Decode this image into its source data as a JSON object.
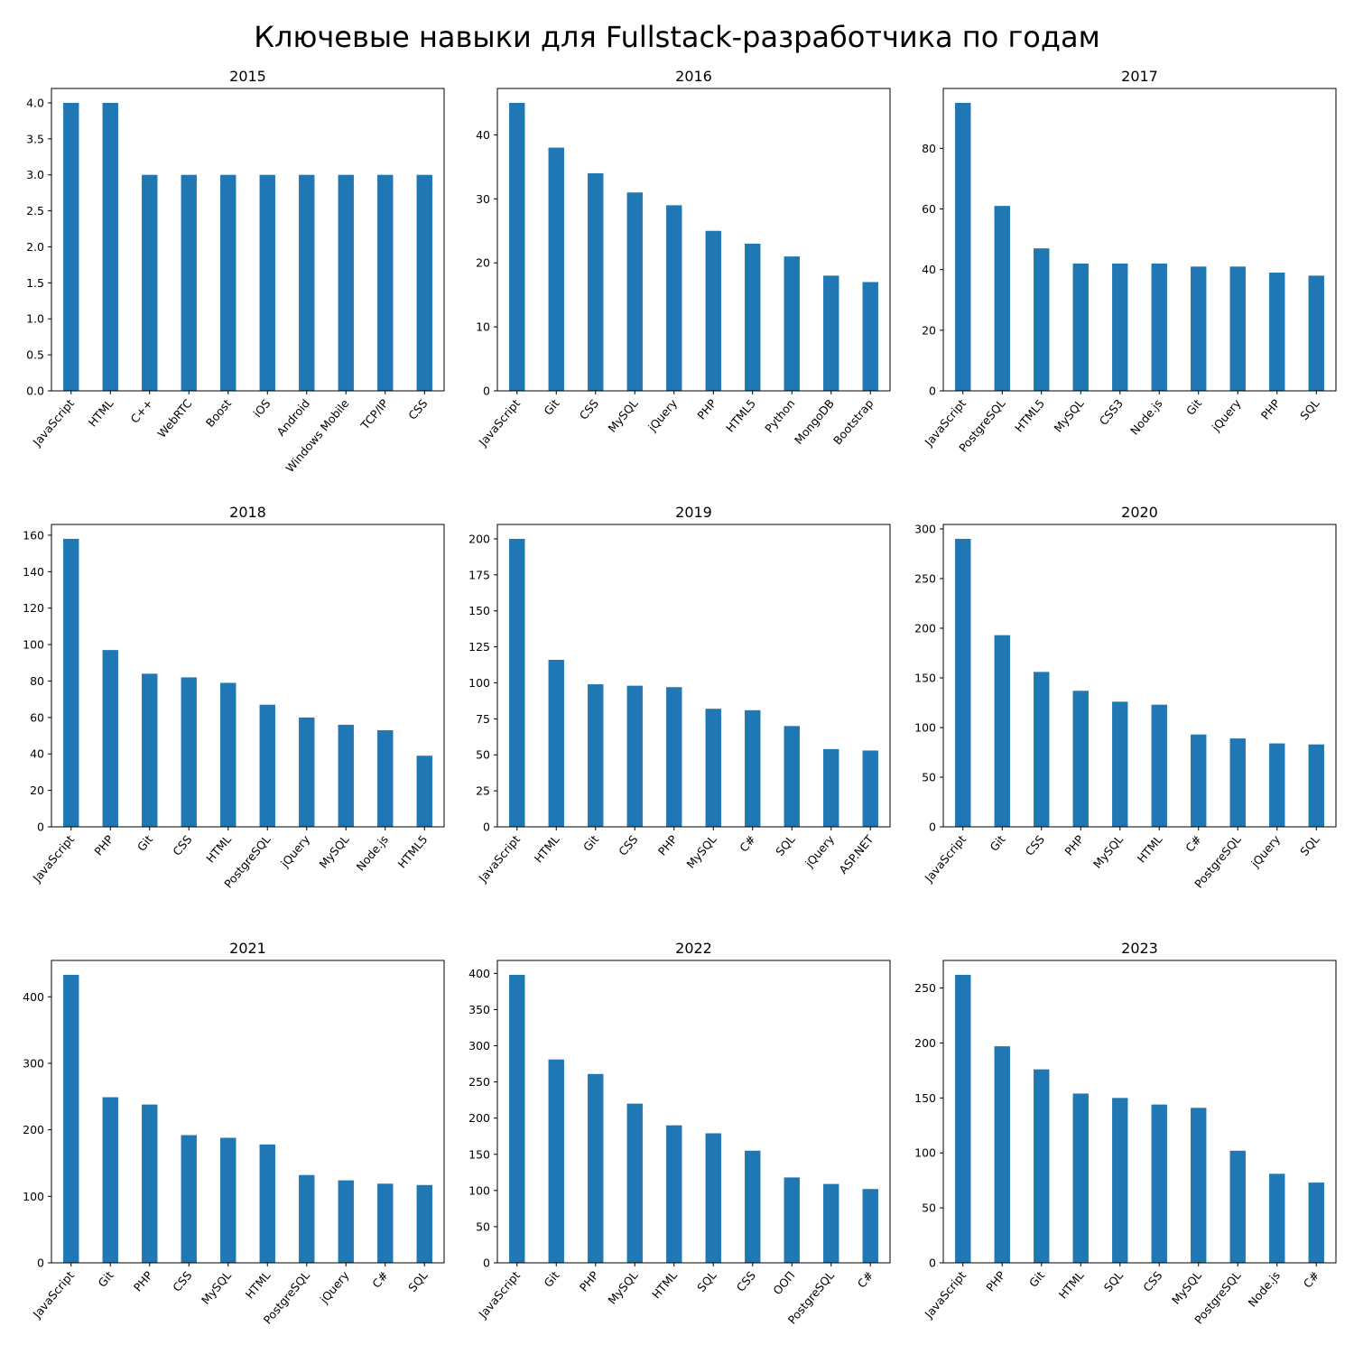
{
  "title": "Ключевые навыки для Fullstack-разработчика по годам",
  "colors": {
    "bar": "#1f77b4",
    "axis": "#000000"
  },
  "chart_data": [
    {
      "type": "bar",
      "title": "2015",
      "categories": [
        "JavaScript",
        "HTML",
        "C++",
        "WebRTC",
        "Boost",
        "iOS",
        "Android",
        "Windows Mobile",
        "TCP/IP",
        "CSS"
      ],
      "values": [
        4,
        4,
        3,
        3,
        3,
        3,
        3,
        3,
        3,
        3
      ],
      "ylim": [
        0,
        4.2
      ],
      "yticks": [
        "0.0",
        "0.5",
        "1.0",
        "1.5",
        "2.0",
        "2.5",
        "3.0",
        "3.5",
        "4.0"
      ]
    },
    {
      "type": "bar",
      "title": "2016",
      "categories": [
        "JavaScript",
        "Git",
        "CSS",
        "MySQL",
        "jQuery",
        "PHP",
        "HTML5",
        "Python",
        "MongoDB",
        "Bootstrap"
      ],
      "values": [
        45,
        38,
        34,
        31,
        29,
        25,
        23,
        21,
        18,
        17
      ],
      "ylim": [
        0,
        47.25
      ],
      "yticks": [
        "0",
        "10",
        "20",
        "30",
        "40"
      ]
    },
    {
      "type": "bar",
      "title": "2017",
      "categories": [
        "JavaScript",
        "PostgreSQL",
        "HTML5",
        "MySQL",
        "CSS3",
        "Node.js",
        "Git",
        "jQuery",
        "PHP",
        "SQL"
      ],
      "values": [
        95,
        61,
        47,
        42,
        42,
        42,
        41,
        41,
        39,
        38
      ],
      "ylim": [
        0,
        99.75
      ],
      "yticks": [
        "0",
        "20",
        "40",
        "60",
        "80"
      ]
    },
    {
      "type": "bar",
      "title": "2018",
      "categories": [
        "JavaScript",
        "PHP",
        "Git",
        "CSS",
        "HTML",
        "PostgreSQL",
        "jQuery",
        "MySQL",
        "Node.js",
        "HTML5"
      ],
      "values": [
        158,
        97,
        84,
        82,
        79,
        67,
        60,
        56,
        53,
        39
      ],
      "ylim": [
        0,
        165.9
      ],
      "yticks": [
        "0",
        "20",
        "40",
        "60",
        "80",
        "100",
        "120",
        "140",
        "160"
      ]
    },
    {
      "type": "bar",
      "title": "2019",
      "categories": [
        "JavaScript",
        "HTML",
        "Git",
        "CSS",
        "PHP",
        "MySQL",
        "C#",
        "SQL",
        "jQuery",
        "ASP.NET"
      ],
      "values": [
        200,
        116,
        99,
        98,
        97,
        82,
        81,
        70,
        54,
        53
      ],
      "ylim": [
        0,
        210
      ],
      "yticks": [
        "0",
        "25",
        "50",
        "75",
        "100",
        "125",
        "150",
        "175",
        "200"
      ]
    },
    {
      "type": "bar",
      "title": "2020",
      "categories": [
        "JavaScript",
        "Git",
        "CSS",
        "PHP",
        "MySQL",
        "HTML",
        "C#",
        "PostgreSQL",
        "jQuery",
        "SQL"
      ],
      "values": [
        290,
        193,
        156,
        137,
        126,
        123,
        93,
        89,
        84,
        83
      ],
      "ylim": [
        0,
        304.5
      ],
      "yticks": [
        "0",
        "50",
        "100",
        "150",
        "200",
        "250",
        "300"
      ]
    },
    {
      "type": "bar",
      "title": "2021",
      "categories": [
        "JavaScript",
        "Git",
        "PHP",
        "CSS",
        "MySQL",
        "HTML",
        "PostgreSQL",
        "jQuery",
        "C#",
        "SQL"
      ],
      "values": [
        433,
        249,
        238,
        192,
        188,
        178,
        132,
        124,
        119,
        117
      ],
      "ylim": [
        0,
        454.65
      ],
      "yticks": [
        "0",
        "100",
        "200",
        "300",
        "400"
      ]
    },
    {
      "type": "bar",
      "title": "2022",
      "categories": [
        "JavaScript",
        "Git",
        "PHP",
        "MySQL",
        "HTML",
        "SQL",
        "CSS",
        "ООП",
        "PostgreSQL",
        "C#"
      ],
      "values": [
        398,
        281,
        261,
        220,
        190,
        179,
        155,
        118,
        109,
        102
      ],
      "ylim": [
        0,
        417.9
      ],
      "yticks": [
        "0",
        "50",
        "100",
        "150",
        "200",
        "250",
        "300",
        "350",
        "400"
      ]
    },
    {
      "type": "bar",
      "title": "2023",
      "categories": [
        "JavaScript",
        "PHP",
        "Git",
        "HTML",
        "SQL",
        "CSS",
        "MySQL",
        "PostgreSQL",
        "Node.js",
        "C#"
      ],
      "values": [
        262,
        197,
        176,
        154,
        150,
        144,
        141,
        102,
        81,
        73
      ],
      "ylim": [
        0,
        275.1
      ],
      "yticks": [
        "0",
        "50",
        "100",
        "150",
        "200",
        "250"
      ]
    }
  ]
}
